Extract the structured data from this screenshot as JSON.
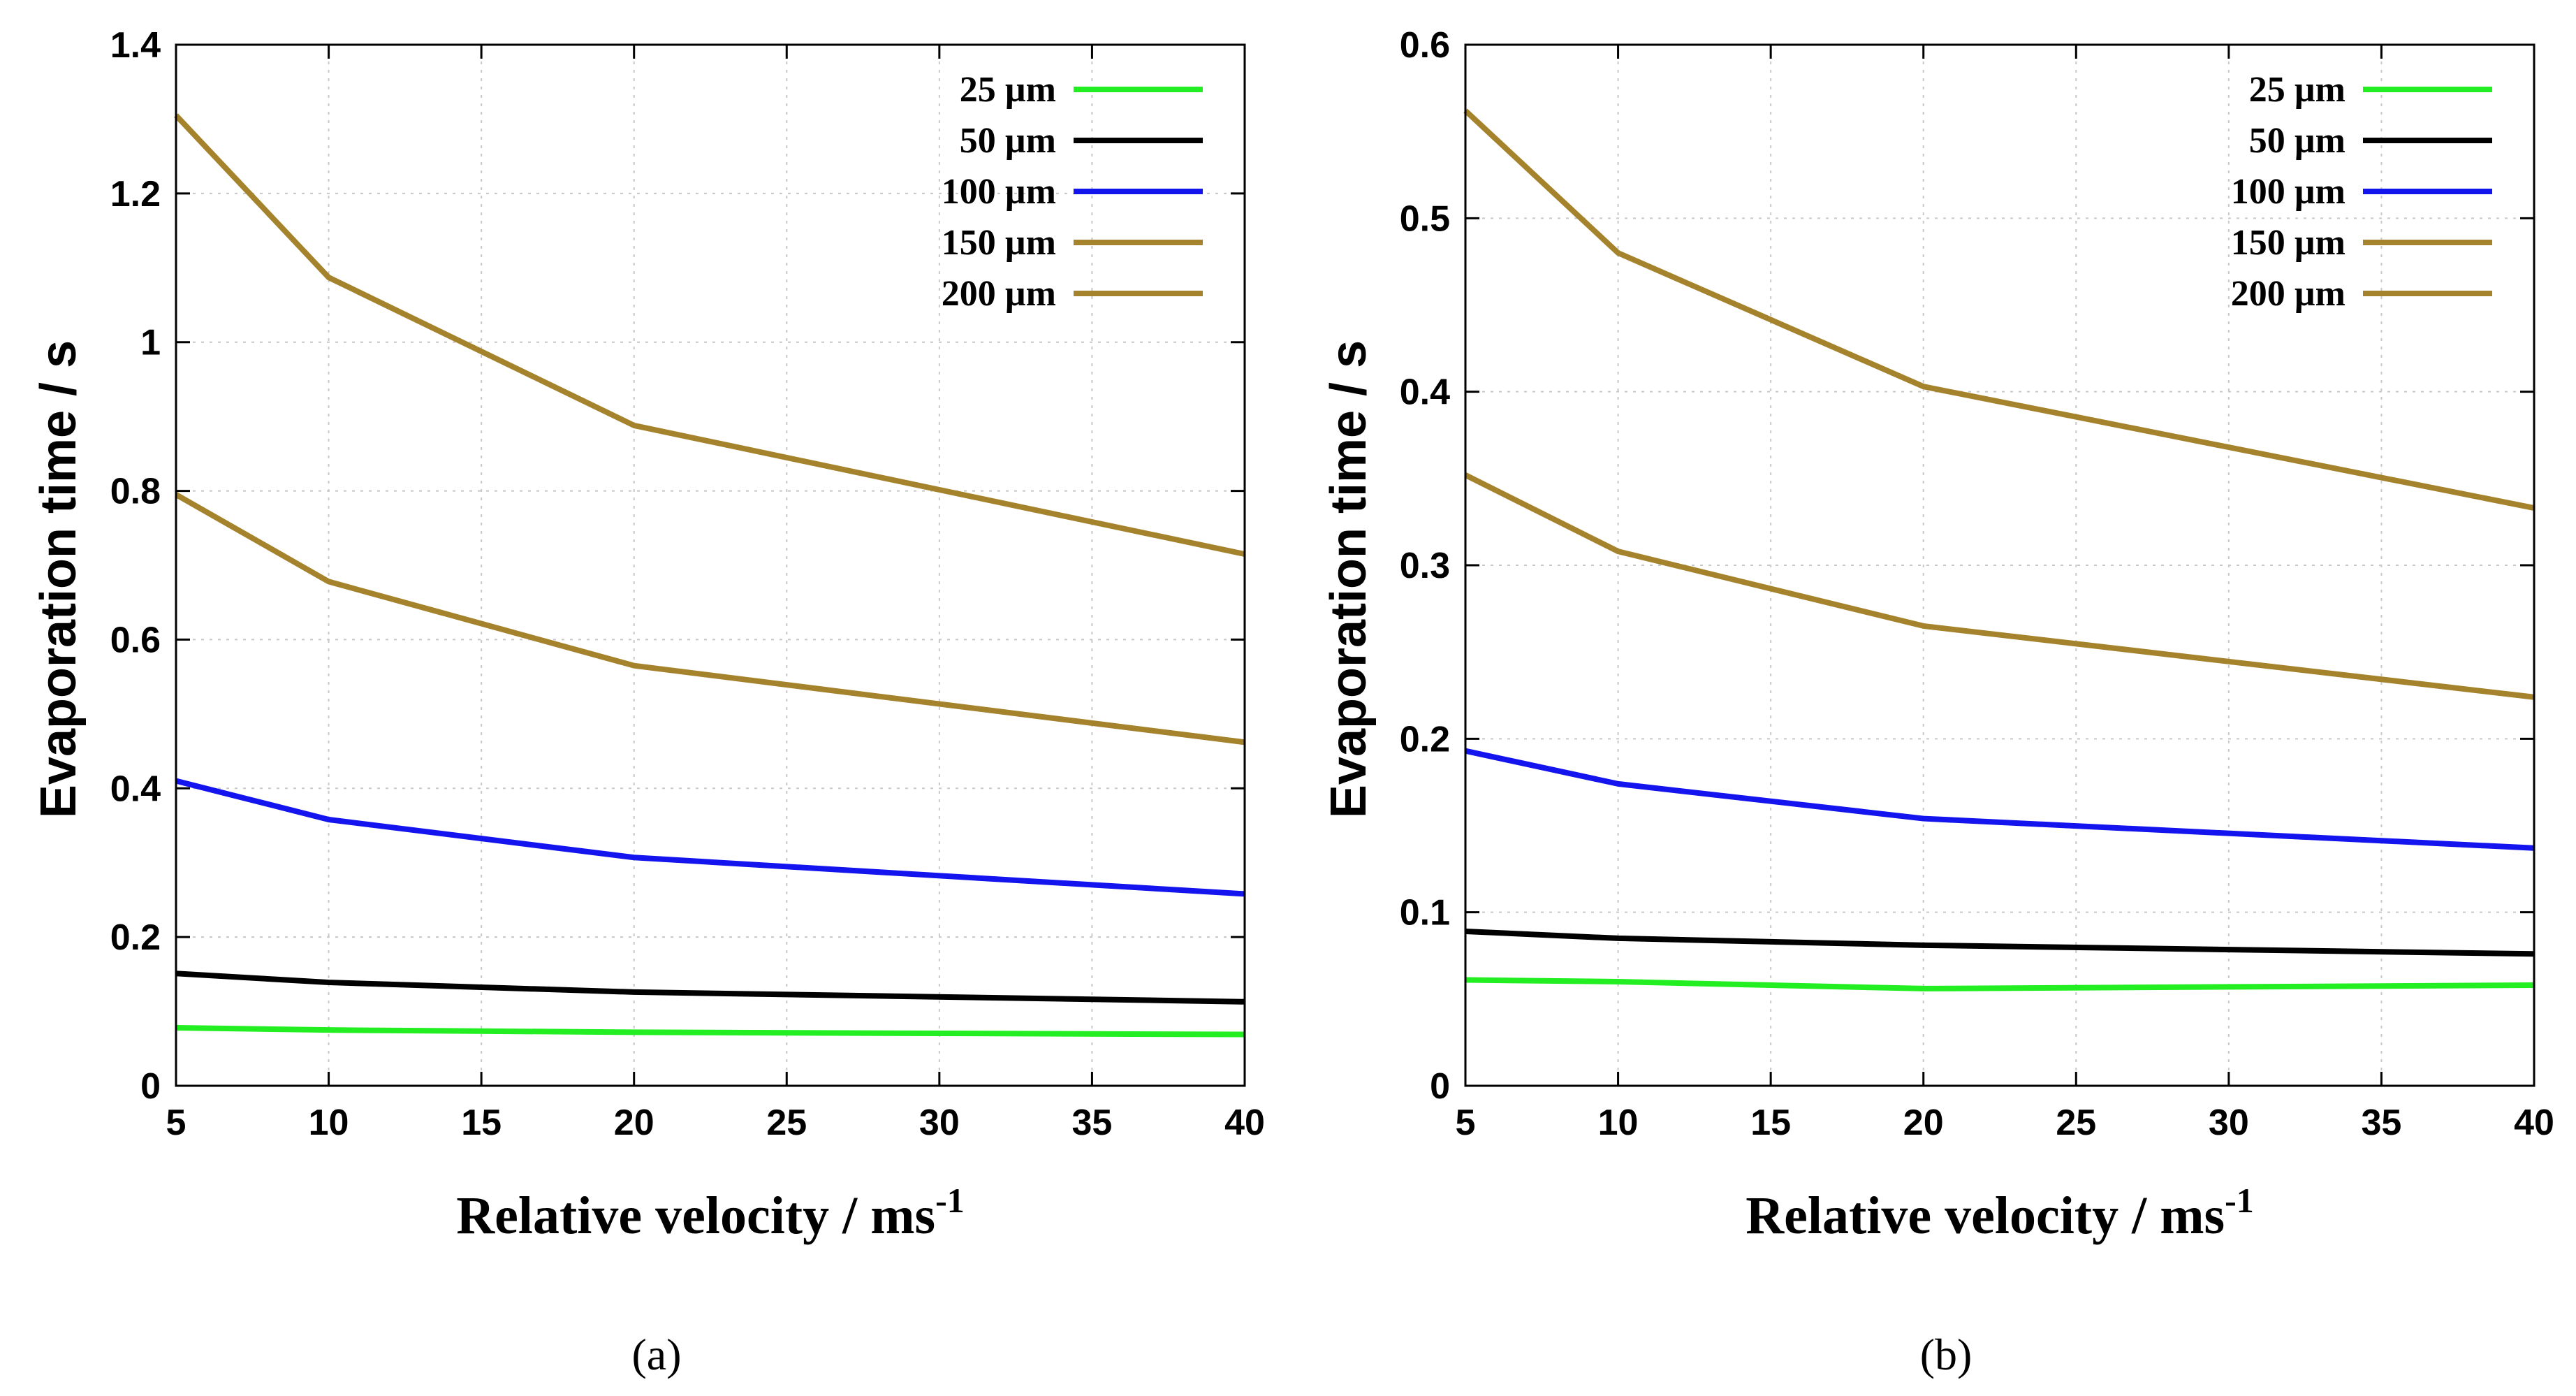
{
  "chart_data": [
    {
      "id": "a",
      "type": "line",
      "caption": "(a)",
      "xlabel": "Relative velocity / ms",
      "xlabel_sup": "-1",
      "ylabel": "Evaporation time / s",
      "xlim": [
        5,
        40
      ],
      "ylim": [
        0,
        1.4
      ],
      "xticks": [
        "5",
        "10",
        "15",
        "20",
        "25",
        "30",
        "35",
        "40"
      ],
      "yticks": [
        "0",
        "0.2",
        "0.4",
        "0.6",
        "0.8",
        "1",
        "1.2",
        "1.4"
      ],
      "grid": true,
      "legend_position": "top-right",
      "x": [
        5,
        10,
        20,
        40
      ],
      "series": [
        {
          "name": "25 µm",
          "color": "#22ee22",
          "values": [
            0.078,
            0.075,
            0.072,
            0.069
          ]
        },
        {
          "name": "50 µm",
          "color": "#000000",
          "values": [
            0.151,
            0.139,
            0.126,
            0.113
          ]
        },
        {
          "name": "100 µm",
          "color": "#1414ee",
          "values": [
            0.41,
            0.358,
            0.307,
            0.258
          ]
        },
        {
          "name": "150 µm",
          "color": "#a5832c",
          "values": [
            0.795,
            0.678,
            0.565,
            0.462
          ]
        },
        {
          "name": "200 µm",
          "color": "#a5832c",
          "values": [
            1.305,
            1.087,
            0.888,
            0.715
          ]
        }
      ]
    },
    {
      "id": "b",
      "type": "line",
      "caption": "(b)",
      "xlabel": "Relative velocity / ms",
      "xlabel_sup": "-1",
      "ylabel": "Evaporation time / s",
      "xlim": [
        5,
        40
      ],
      "ylim": [
        0,
        0.6
      ],
      "xticks": [
        "5",
        "10",
        "15",
        "20",
        "25",
        "30",
        "35",
        "40"
      ],
      "yticks": [
        "0",
        "0.1",
        "0.2",
        "0.3",
        "0.4",
        "0.5",
        "0.6"
      ],
      "grid": true,
      "legend_position": "top-right",
      "x": [
        5,
        10,
        20,
        40
      ],
      "series": [
        {
          "name": "25 µm",
          "color": "#22ee22",
          "values": [
            0.061,
            0.06,
            0.056,
            0.058
          ]
        },
        {
          "name": "50 µm",
          "color": "#000000",
          "values": [
            0.089,
            0.085,
            0.081,
            0.076
          ]
        },
        {
          "name": "100 µm",
          "color": "#1414ee",
          "values": [
            0.193,
            0.174,
            0.154,
            0.137
          ]
        },
        {
          "name": "150 µm",
          "color": "#a5832c",
          "values": [
            0.352,
            0.308,
            0.265,
            0.224
          ]
        },
        {
          "name": "200 µm",
          "color": "#a5832c",
          "values": [
            0.562,
            0.48,
            0.403,
            0.333
          ]
        }
      ]
    }
  ]
}
